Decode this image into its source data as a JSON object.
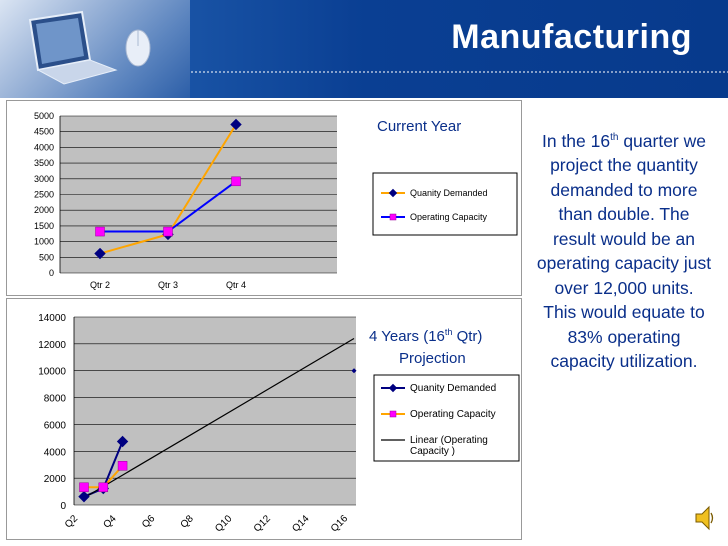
{
  "header": {
    "title": "Manufacturing"
  },
  "side_text": "In the 16th quarter we project the quantity demanded to more than double. The result would be an operating capacity just over 12,000 units. This would equate to 83% operating capacity utilization.",
  "colors": {
    "quantity_demanded": "#000080",
    "quantity_demanded_line": "#FFA500",
    "operating_capacity_marker": "#FF00FF",
    "operating_capacity_line": "#0000FF",
    "plot_area": "#C0C0C0",
    "text_blue": "#0A2F8A"
  },
  "chart_data": [
    {
      "type": "line",
      "title": "Current Year",
      "categories": [
        "Qtr 2",
        "Qtr 3",
        "Qtr 4"
      ],
      "ylim": [
        0,
        5000
      ],
      "yticks": [
        "0",
        "500",
        "1000",
        "1500",
        "2000",
        "2500",
        "3000",
        "3500",
        "4000",
        "4500",
        "5000"
      ],
      "series": [
        {
          "name": "Quanity Demanded",
          "values": [
            620,
            1230,
            4730
          ],
          "marker": "diamond",
          "marker_color": "#000080",
          "line_color": "#FFA500"
        },
        {
          "name": "Operating Capacity",
          "values": [
            1320,
            1320,
            2920
          ],
          "marker": "square",
          "marker_color": "#FF00FF",
          "line_color": "#0000FF"
        }
      ],
      "grid": true,
      "legend": "right"
    },
    {
      "type": "line",
      "title": "4 Years (16th Qtr) Projection",
      "x_tick_labels": [
        "Q2",
        "Q4",
        "Q6",
        "Q8",
        "Q10",
        "Q12",
        "Q14",
        "Q16"
      ],
      "ylim": [
        0,
        14000
      ],
      "yticks": [
        "0",
        "2000",
        "4000",
        "6000",
        "8000",
        "10000",
        "12000",
        "14000"
      ],
      "series": [
        {
          "name": "Quanity Demanded",
          "points": [
            [
              2,
              620
            ],
            [
              3,
              1230
            ],
            [
              4,
              4730
            ],
            [
              16,
              10000
            ]
          ],
          "marker": "diamond",
          "marker_color": "#000080",
          "line_color": "#000080"
        },
        {
          "name": "Operating Capacity",
          "points": [
            [
              2,
              1320
            ],
            [
              3,
              1320
            ],
            [
              4,
              2920
            ]
          ],
          "marker": "square",
          "marker_color": "#FF00FF",
          "line_color": "#FFA500"
        },
        {
          "name": "Linear (Operating Capacity )",
          "points": [
            [
              2,
              530
            ],
            [
              16,
              12400
            ]
          ],
          "line_color": "#000000"
        }
      ],
      "grid": true,
      "legend": "right"
    }
  ]
}
